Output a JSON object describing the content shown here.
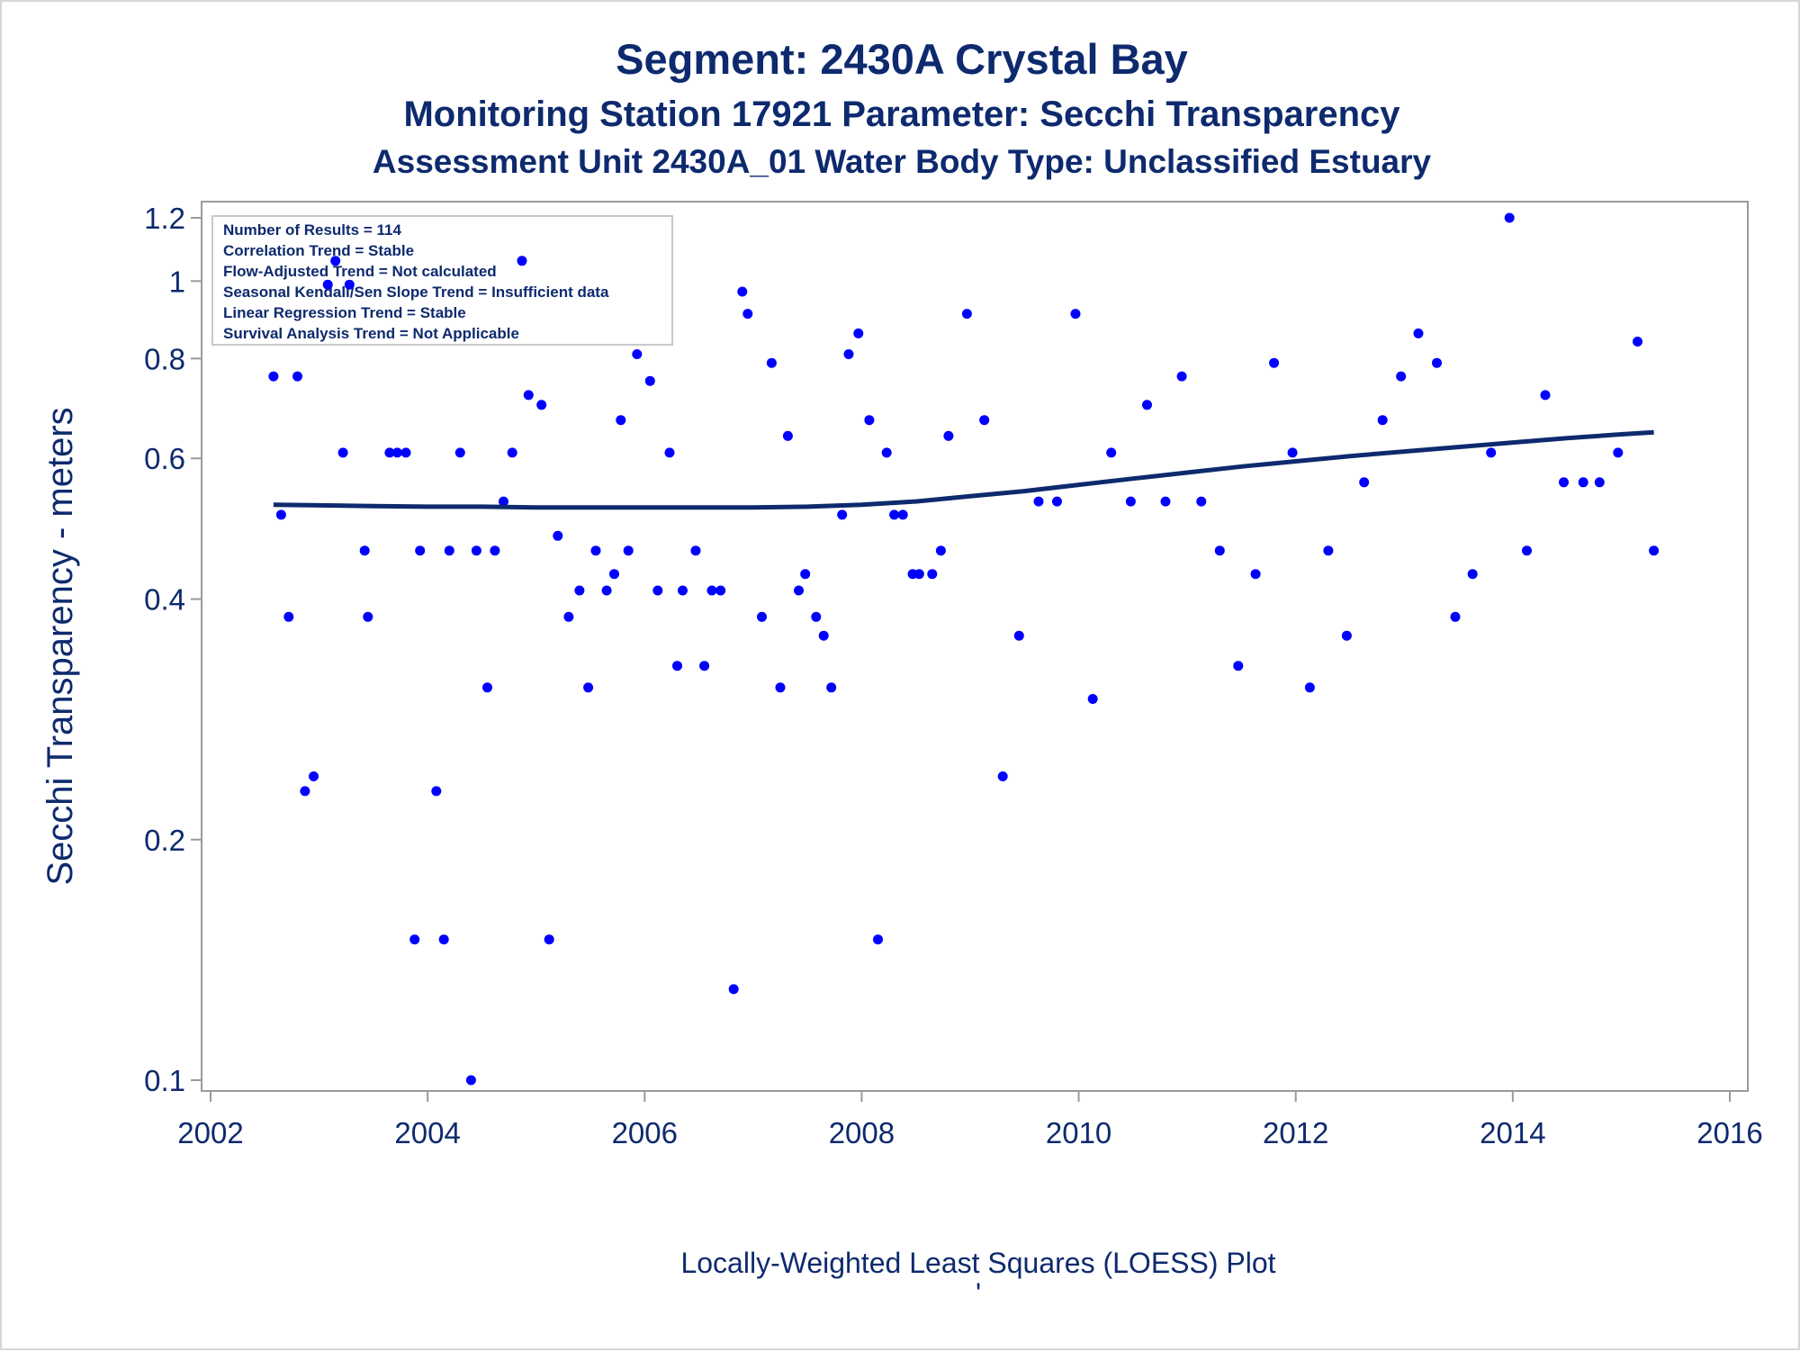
{
  "chart_data": {
    "type": "scatter",
    "title": "Segment: 2430A  Crystal Bay",
    "subtitle": "Monitoring Station 17921 Parameter: Secchi Transparency",
    "subtitle2": "Assessment Unit 2430A_01   Water Body Type: Unclassified Estuary",
    "xlabel": "",
    "ylabel": "Secchi Transparency - meters",
    "footnote": "Locally-Weighted Least Squares (LOESS) Plot",
    "footnote_mark": "'",
    "y_scale": "log",
    "xlim": [
      2002,
      2016
    ],
    "ylim": [
      0.1,
      1.2
    ],
    "x_ticks": [
      "2002",
      "2004",
      "2006",
      "2008",
      "2010",
      "2012",
      "2014",
      "2016"
    ],
    "y_ticks": [
      "0.1",
      "0.2",
      "0.4",
      "0.6",
      "0.8",
      "1",
      "1.2"
    ],
    "grid": false,
    "colors": {
      "points": "#0000ff",
      "line": "#0e2a6e",
      "text": "#0e2a6e",
      "axis": "#9a9a9a"
    },
    "stats_box": {
      "placement": "top-left",
      "lines": [
        "Number of Results = 114",
        "Correlation Trend = Stable",
        "Flow-Adjusted Trend = Not calculated",
        "Seasonal Kendall/Sen Slope Trend = Insufficient data",
        "Linear Regression Trend = Stable",
        "Survival Analysis Trend = Not Applicable"
      ]
    },
    "points": [
      [
        2002.58,
        0.76
      ],
      [
        2002.65,
        0.51
      ],
      [
        2002.72,
        0.38
      ],
      [
        2002.8,
        0.76
      ],
      [
        2002.87,
        0.23
      ],
      [
        2002.95,
        0.24
      ],
      [
        2003.08,
        0.99
      ],
      [
        2003.15,
        1.06
      ],
      [
        2003.22,
        0.61
      ],
      [
        2003.28,
        0.99
      ],
      [
        2003.42,
        0.46
      ],
      [
        2003.45,
        0.38
      ],
      [
        2003.65,
        0.61
      ],
      [
        2003.72,
        0.61
      ],
      [
        2003.8,
        0.61
      ],
      [
        2003.88,
        0.15
      ],
      [
        2003.93,
        0.46
      ],
      [
        2004.08,
        0.23
      ],
      [
        2004.15,
        0.15
      ],
      [
        2004.2,
        0.46
      ],
      [
        2004.3,
        0.61
      ],
      [
        2004.4,
        0.1
      ],
      [
        2004.45,
        0.46
      ],
      [
        2004.55,
        0.31
      ],
      [
        2004.62,
        0.46
      ],
      [
        2004.7,
        0.53
      ],
      [
        2004.78,
        0.61
      ],
      [
        2004.87,
        1.06
      ],
      [
        2004.93,
        0.72
      ],
      [
        2005.05,
        0.7
      ],
      [
        2005.12,
        0.15
      ],
      [
        2005.2,
        0.48
      ],
      [
        2005.3,
        0.38
      ],
      [
        2005.4,
        0.41
      ],
      [
        2005.48,
        0.31
      ],
      [
        2005.55,
        0.46
      ],
      [
        2005.65,
        0.41
      ],
      [
        2005.72,
        0.43
      ],
      [
        2005.78,
        0.67
      ],
      [
        2005.85,
        0.46
      ],
      [
        2005.93,
        0.81
      ],
      [
        2006.05,
        0.75
      ],
      [
        2006.12,
        0.41
      ],
      [
        2006.23,
        0.61
      ],
      [
        2006.3,
        0.33
      ],
      [
        2006.35,
        0.41
      ],
      [
        2006.47,
        0.46
      ],
      [
        2006.55,
        0.33
      ],
      [
        2006.62,
        0.41
      ],
      [
        2006.7,
        0.41
      ],
      [
        2006.82,
        0.13
      ],
      [
        2006.9,
        0.97
      ],
      [
        2006.95,
        0.91
      ],
      [
        2007.08,
        0.38
      ],
      [
        2007.17,
        0.79
      ],
      [
        2007.25,
        0.31
      ],
      [
        2007.32,
        0.64
      ],
      [
        2007.42,
        0.41
      ],
      [
        2007.48,
        0.43
      ],
      [
        2007.58,
        0.38
      ],
      [
        2007.65,
        0.36
      ],
      [
        2007.72,
        0.31
      ],
      [
        2007.82,
        0.51
      ],
      [
        2007.88,
        0.81
      ],
      [
        2007.97,
        0.86
      ],
      [
        2008.07,
        0.67
      ],
      [
        2008.15,
        0.15
      ],
      [
        2008.23,
        0.61
      ],
      [
        2008.3,
        0.51
      ],
      [
        2008.38,
        0.51
      ],
      [
        2008.47,
        0.43
      ],
      [
        2008.53,
        0.43
      ],
      [
        2008.65,
        0.43
      ],
      [
        2008.73,
        0.46
      ],
      [
        2008.8,
        0.64
      ],
      [
        2008.97,
        0.91
      ],
      [
        2009.13,
        0.67
      ],
      [
        2009.3,
        0.24
      ],
      [
        2009.45,
        0.36
      ],
      [
        2009.63,
        0.53
      ],
      [
        2009.8,
        0.53
      ],
      [
        2009.97,
        0.91
      ],
      [
        2010.13,
        0.3
      ],
      [
        2010.3,
        0.61
      ],
      [
        2010.48,
        0.53
      ],
      [
        2010.63,
        0.7
      ],
      [
        2010.8,
        0.53
      ],
      [
        2010.95,
        0.76
      ],
      [
        2011.13,
        0.53
      ],
      [
        2011.3,
        0.46
      ],
      [
        2011.47,
        0.33
      ],
      [
        2011.63,
        0.43
      ],
      [
        2011.8,
        0.79
      ],
      [
        2011.97,
        0.61
      ],
      [
        2012.13,
        0.31
      ],
      [
        2012.3,
        0.46
      ],
      [
        2012.47,
        0.36
      ],
      [
        2012.63,
        0.56
      ],
      [
        2012.8,
        0.67
      ],
      [
        2012.97,
        0.76
      ],
      [
        2013.13,
        0.86
      ],
      [
        2013.3,
        0.79
      ],
      [
        2013.47,
        0.38
      ],
      [
        2013.63,
        0.43
      ],
      [
        2013.8,
        0.61
      ],
      [
        2013.97,
        1.2
      ],
      [
        2014.13,
        0.46
      ],
      [
        2014.3,
        0.72
      ],
      [
        2014.47,
        0.56
      ],
      [
        2014.65,
        0.56
      ],
      [
        2014.8,
        0.56
      ],
      [
        2014.97,
        0.61
      ],
      [
        2015.15,
        0.84
      ],
      [
        2015.3,
        0.46
      ]
    ],
    "loess_line": [
      [
        2002.58,
        0.525
      ],
      [
        2003.0,
        0.524
      ],
      [
        2003.5,
        0.523
      ],
      [
        2004.0,
        0.522
      ],
      [
        2004.5,
        0.522
      ],
      [
        2005.0,
        0.521
      ],
      [
        2005.5,
        0.521
      ],
      [
        2006.0,
        0.521
      ],
      [
        2006.5,
        0.521
      ],
      [
        2007.0,
        0.521
      ],
      [
        2007.5,
        0.522
      ],
      [
        2008.0,
        0.525
      ],
      [
        2008.5,
        0.53
      ],
      [
        2009.0,
        0.538
      ],
      [
        2009.5,
        0.546
      ],
      [
        2010.0,
        0.556
      ],
      [
        2010.5,
        0.566
      ],
      [
        2011.0,
        0.576
      ],
      [
        2011.5,
        0.586
      ],
      [
        2012.0,
        0.595
      ],
      [
        2012.5,
        0.604
      ],
      [
        2013.0,
        0.612
      ],
      [
        2013.5,
        0.62
      ],
      [
        2014.0,
        0.628
      ],
      [
        2014.5,
        0.636
      ],
      [
        2015.0,
        0.643
      ],
      [
        2015.3,
        0.647
      ]
    ]
  }
}
